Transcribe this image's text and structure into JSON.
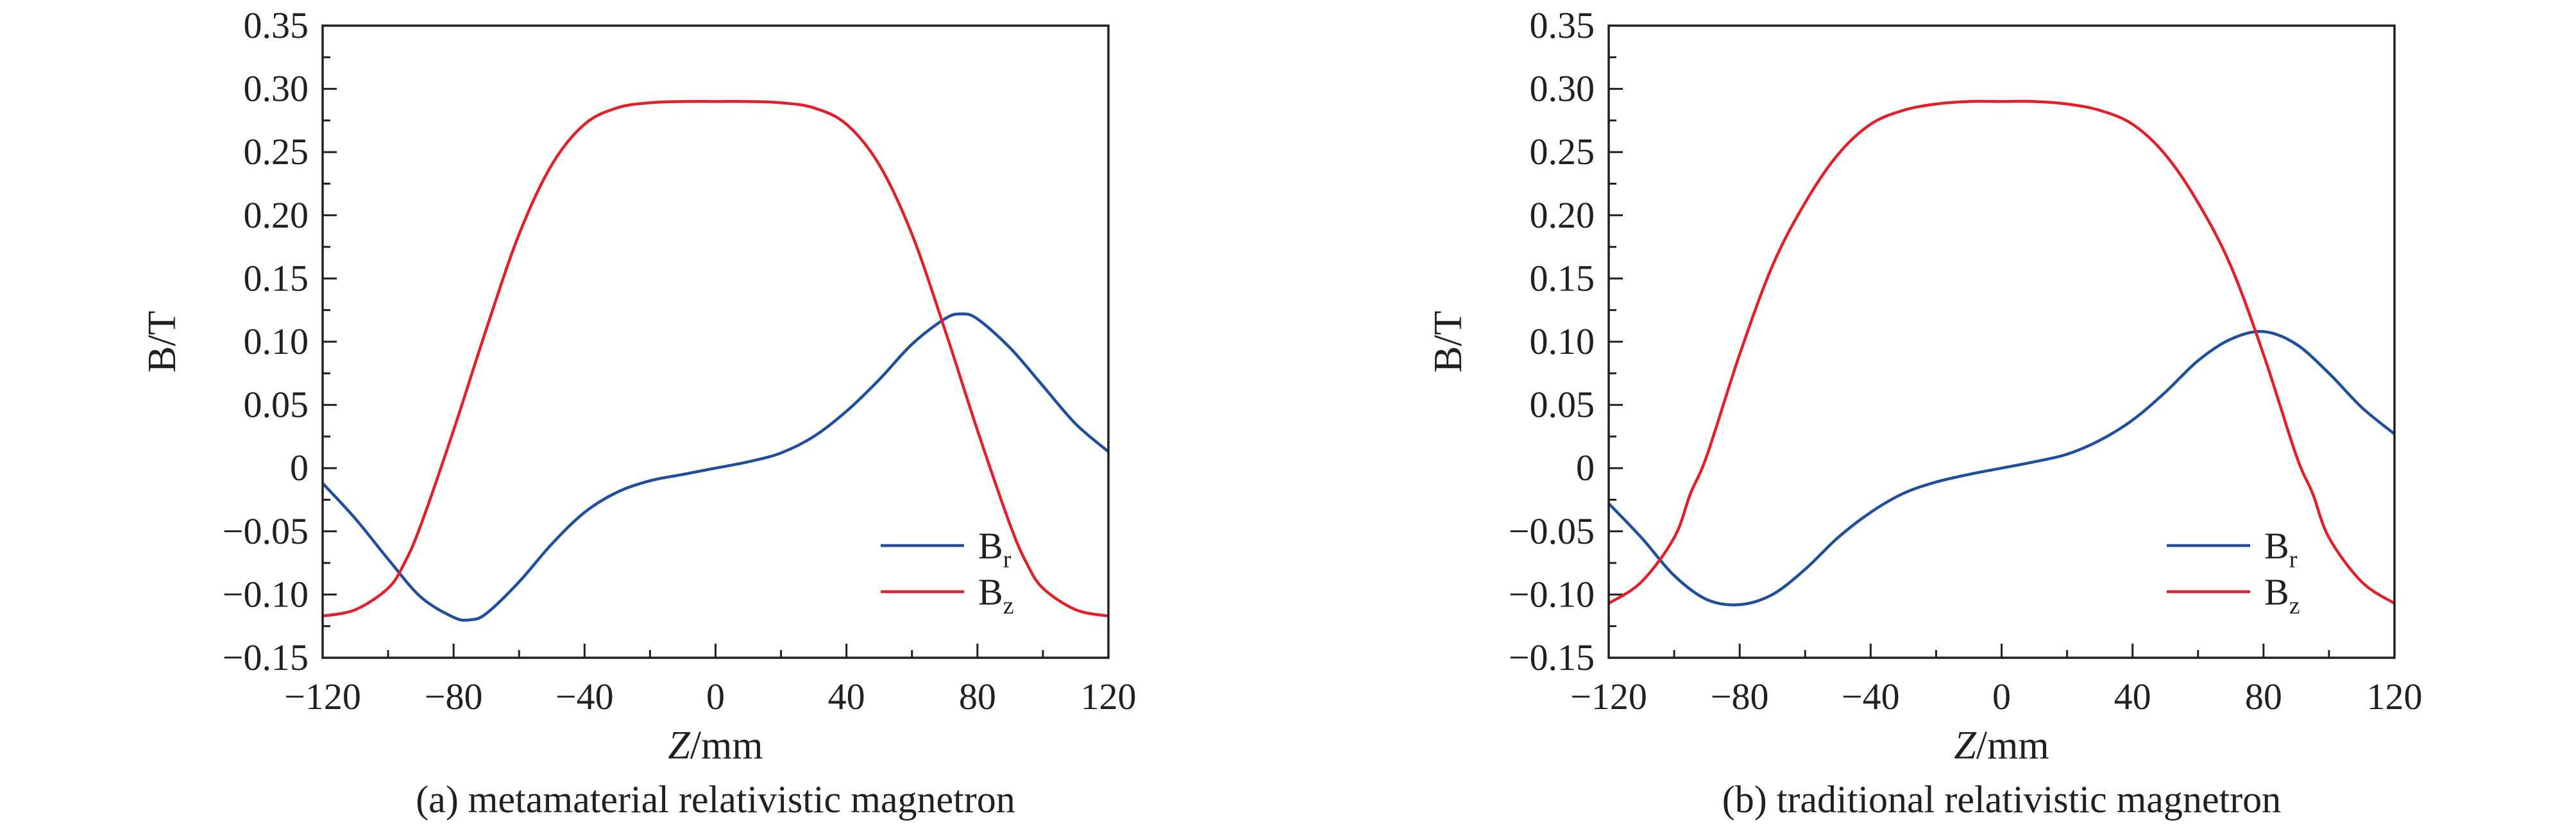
{
  "chart_data": [
    {
      "type": "line",
      "caption": "(a) metamaterial relativistic magnetron",
      "xlabel_italic": "Z",
      "xlabel_unit": "/mm",
      "ylabel": "B/T",
      "xlim": [
        -120,
        120
      ],
      "ylim": [
        -0.15,
        0.35
      ],
      "xticks": [
        -120,
        -80,
        -40,
        0,
        40,
        80,
        120
      ],
      "xtick_labels": [
        "−120",
        "−80",
        "−40",
        "0",
        "40",
        "80",
        "120"
      ],
      "yticks": [
        -0.15,
        -0.1,
        -0.05,
        0,
        0.05,
        0.1,
        0.15,
        0.2,
        0.25,
        0.3,
        0.35
      ],
      "ytick_labels": [
        "−0.15",
        "−0.10",
        "−0.05",
        "0",
        "0.05",
        "0.10",
        "0.15",
        "0.20",
        "0.25",
        "0.30",
        "0.35"
      ],
      "grid": false,
      "legend_position": "bottom-right",
      "series": [
        {
          "name": "B",
          "subscript": "r",
          "color": "#1f4e9c",
          "x": [
            -120,
            -110,
            -100,
            -90,
            -80,
            -75,
            -70,
            -60,
            -50,
            -40,
            -30,
            -20,
            -10,
            0,
            10,
            20,
            30,
            40,
            50,
            60,
            70,
            75,
            80,
            90,
            100,
            110,
            120
          ],
          "y": [
            -0.012,
            -0.04,
            -0.072,
            -0.102,
            -0.118,
            -0.12,
            -0.115,
            -0.09,
            -0.06,
            -0.035,
            -0.019,
            -0.01,
            -0.005,
            0.0,
            0.005,
            0.012,
            0.025,
            0.045,
            0.07,
            0.098,
            0.118,
            0.122,
            0.118,
            0.095,
            0.065,
            0.035,
            0.013
          ]
        },
        {
          "name": "B",
          "subscript": "z",
          "color": "#e0202a",
          "x": [
            -120,
            -110,
            -100,
            -95,
            -90,
            -80,
            -70,
            -60,
            -50,
            -40,
            -30,
            -20,
            -10,
            0,
            10,
            20,
            30,
            40,
            50,
            60,
            70,
            80,
            90,
            95,
            100,
            110,
            120
          ],
          "y": [
            -0.117,
            -0.112,
            -0.095,
            -0.075,
            -0.045,
            0.03,
            0.11,
            0.185,
            0.24,
            0.272,
            0.285,
            0.289,
            0.29,
            0.29,
            0.29,
            0.289,
            0.285,
            0.272,
            0.24,
            0.185,
            0.11,
            0.03,
            -0.045,
            -0.075,
            -0.095,
            -0.112,
            -0.117
          ]
        }
      ]
    },
    {
      "type": "line",
      "caption": "(b) traditional relativistic magnetron",
      "xlabel_italic": "Z",
      "xlabel_unit": "/mm",
      "ylabel": "B/T",
      "xlim": [
        -120,
        120
      ],
      "ylim": [
        -0.15,
        0.35
      ],
      "xticks": [
        -120,
        -80,
        -40,
        0,
        40,
        80,
        120
      ],
      "xtick_labels": [
        "−120",
        "−80",
        "−40",
        "0",
        "40",
        "80",
        "120"
      ],
      "yticks": [
        -0.15,
        -0.1,
        -0.05,
        0,
        0.05,
        0.1,
        0.15,
        0.2,
        0.25,
        0.3,
        0.35
      ],
      "ytick_labels": [
        "−0.15",
        "−0.10",
        "−0.05",
        "0",
        "0.05",
        "0.10",
        "0.15",
        "0.20",
        "0.25",
        "0.30",
        "0.35"
      ],
      "grid": false,
      "legend_position": "bottom-right",
      "series": [
        {
          "name": "B",
          "subscript": "r",
          "color": "#1f4e9c",
          "x": [
            -120,
            -110,
            -100,
            -90,
            -80,
            -70,
            -60,
            -50,
            -40,
            -30,
            -20,
            -10,
            0,
            10,
            20,
            30,
            40,
            50,
            60,
            70,
            80,
            90,
            100,
            110,
            120
          ],
          "y": [
            -0.028,
            -0.055,
            -0.085,
            -0.104,
            -0.108,
            -0.1,
            -0.08,
            -0.055,
            -0.035,
            -0.02,
            -0.011,
            -0.005,
            0.0,
            0.005,
            0.011,
            0.022,
            0.038,
            0.06,
            0.085,
            0.102,
            0.108,
            0.098,
            0.075,
            0.048,
            0.027
          ]
        },
        {
          "name": "B",
          "subscript": "z",
          "color": "#e0202a",
          "x": [
            -120,
            -110,
            -100,
            -95,
            -90,
            -80,
            -70,
            -60,
            -50,
            -40,
            -30,
            -20,
            -10,
            0,
            10,
            20,
            30,
            40,
            50,
            60,
            70,
            80,
            90,
            95,
            100,
            110,
            120
          ],
          "y": [
            -0.107,
            -0.09,
            -0.055,
            -0.02,
            0.01,
            0.09,
            0.16,
            0.21,
            0.248,
            0.272,
            0.283,
            0.288,
            0.29,
            0.29,
            0.29,
            0.288,
            0.283,
            0.272,
            0.248,
            0.21,
            0.16,
            0.09,
            0.01,
            -0.02,
            -0.055,
            -0.09,
            -0.107
          ]
        }
      ]
    }
  ]
}
